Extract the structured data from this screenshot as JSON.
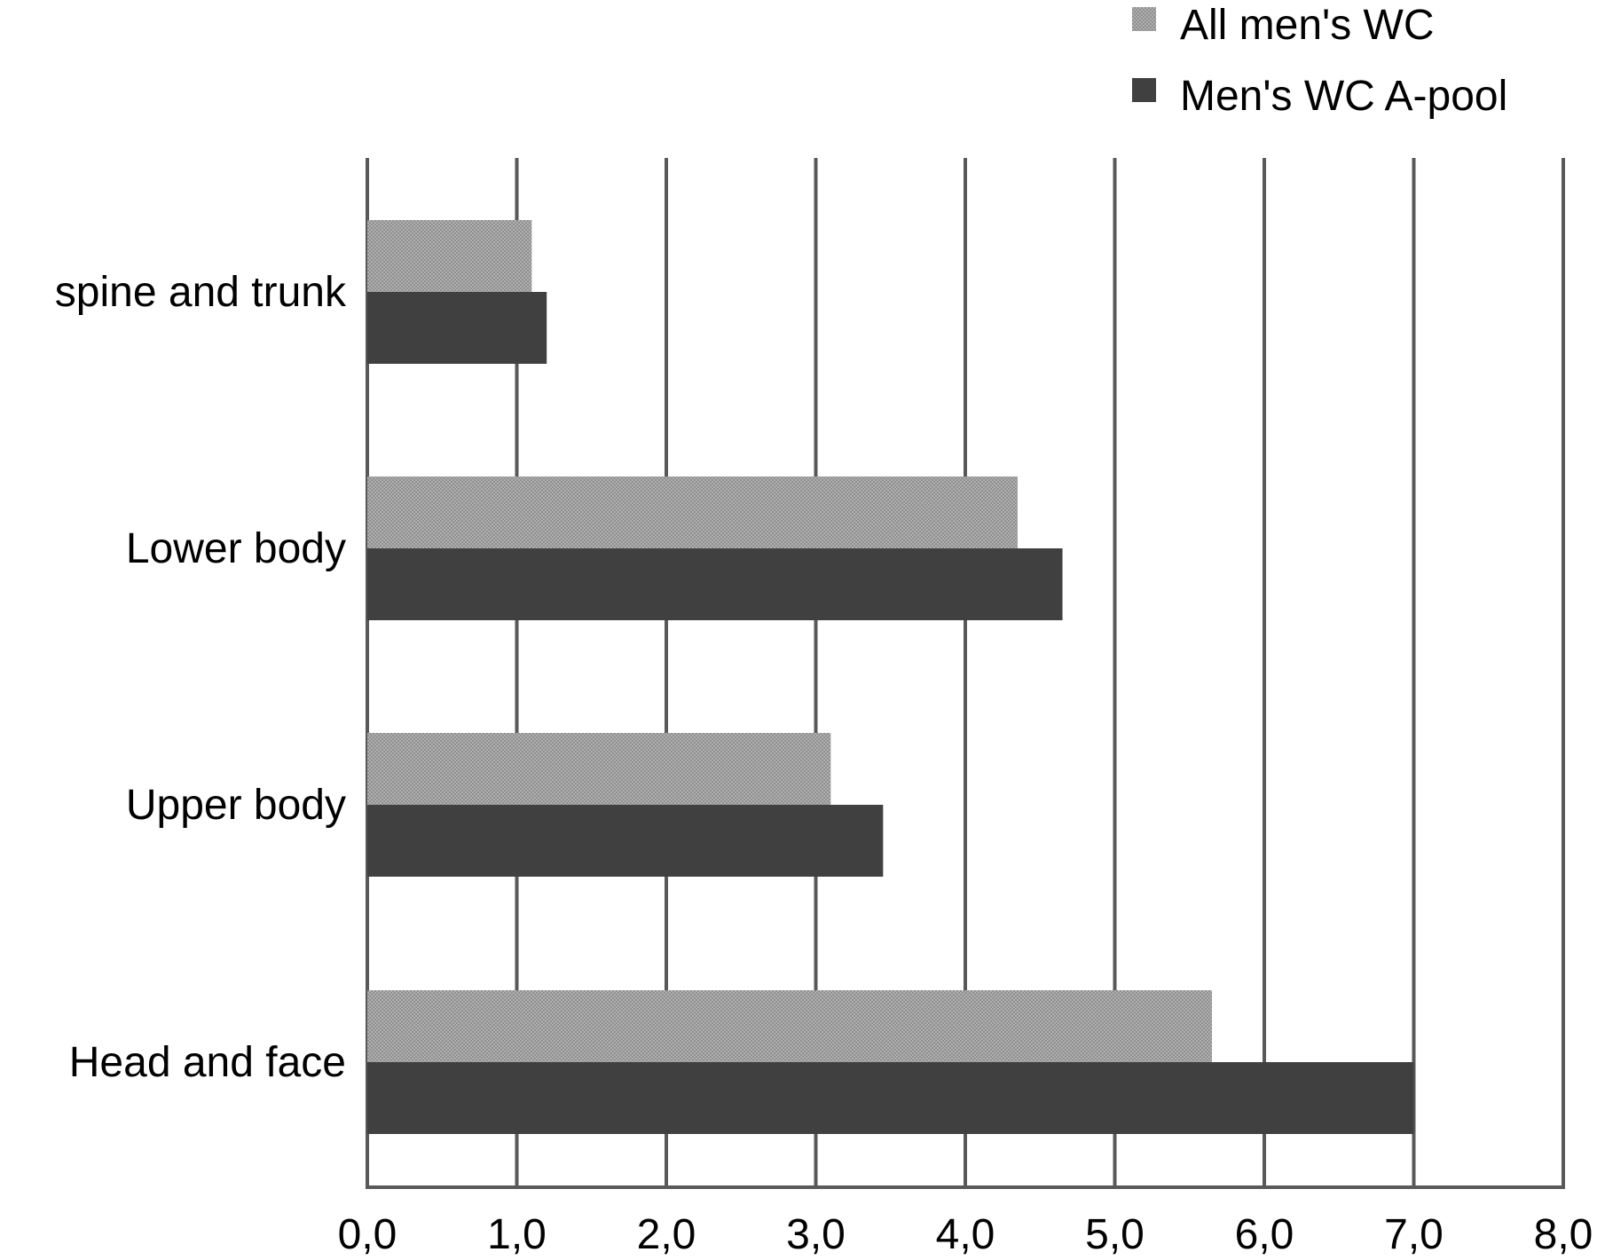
{
  "chart_data": {
    "type": "bar",
    "orientation": "horizontal",
    "title": "",
    "xlabel": "",
    "ylabel": "",
    "categories": [
      "spine and trunk",
      "Lower body",
      "Upper body",
      "Head and face"
    ],
    "series": [
      {
        "name": "All men's WC",
        "values": [
          1.1,
          4.35,
          3.1,
          5.65
        ],
        "color": "#9a9a9a"
      },
      {
        "name": "Men's WC A-pool",
        "values": [
          1.2,
          4.65,
          3.45,
          7.0
        ],
        "color": "#404040"
      }
    ],
    "xlim": [
      0,
      8
    ],
    "x_ticks": [
      0,
      1,
      2,
      3,
      4,
      5,
      6,
      7,
      8
    ],
    "x_tick_labels": [
      "0,0",
      "1,0",
      "2,0",
      "3,0",
      "4,0",
      "5,0",
      "6,0",
      "7,0",
      "8,0"
    ],
    "grid": "vertical",
    "legend": "top-right"
  },
  "colors": {
    "grid": "#595959",
    "axis": "#595959"
  }
}
